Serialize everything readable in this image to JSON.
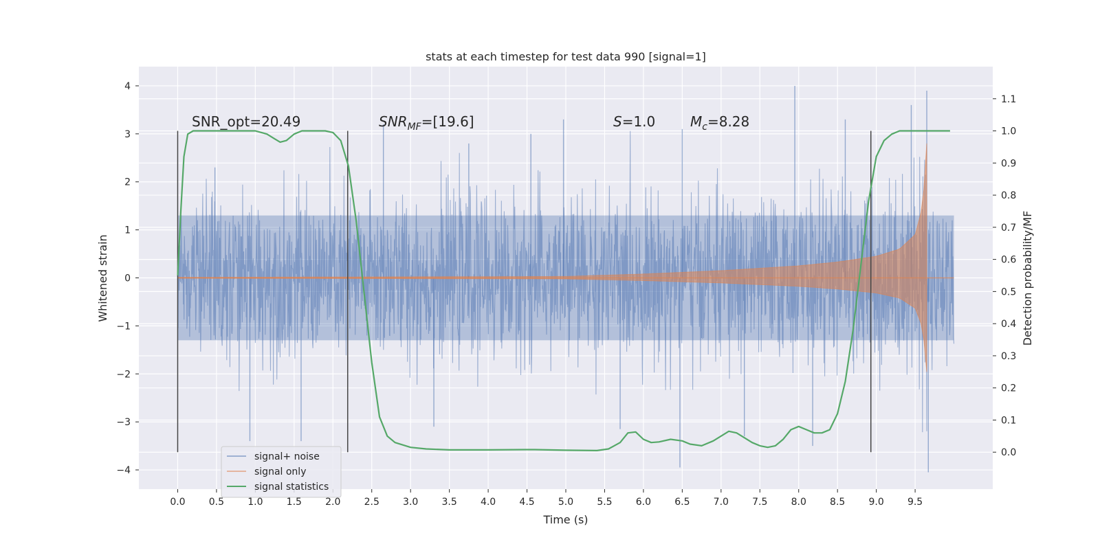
{
  "chart_data": {
    "type": "line",
    "title": "stats at each timestep for test data 990 [signal=1]",
    "xlabel": "Time (s)",
    "ylabel": "Whitened strain",
    "y2label": "Detection probability/MF",
    "xlim": [
      -0.5,
      10.5
    ],
    "ylim": [
      -4.4,
      4.4
    ],
    "y2lim": [
      -0.115,
      1.2
    ],
    "x_ticks": [
      "0.0",
      "0.5",
      "1.0",
      "1.5",
      "2.0",
      "2.5",
      "3.0",
      "3.5",
      "4.0",
      "4.5",
      "5.0",
      "5.5",
      "6.0",
      "6.5",
      "7.0",
      "7.5",
      "8.0",
      "8.5",
      "9.0",
      "9.5"
    ],
    "x_tick_values": [
      0,
      0.5,
      1,
      1.5,
      2,
      2.5,
      3,
      3.5,
      4,
      4.5,
      5,
      5.5,
      6,
      6.5,
      7,
      7.5,
      8,
      8.5,
      9,
      9.5
    ],
    "y_ticks": [
      "−4",
      "−3",
      "−2",
      "−1",
      "0",
      "1",
      "2",
      "3",
      "4"
    ],
    "y_tick_values": [
      -4,
      -3,
      -2,
      -1,
      0,
      1,
      2,
      3,
      4
    ],
    "y2_ticks": [
      "0.0",
      "0.1",
      "0.2",
      "0.3",
      "0.4",
      "0.5",
      "0.6",
      "0.7",
      "0.8",
      "0.9",
      "1.0",
      "1.1"
    ],
    "y2_tick_values": [
      0,
      0.1,
      0.2,
      0.3,
      0.4,
      0.5,
      0.6,
      0.7,
      0.8,
      0.9,
      1.0,
      1.1
    ],
    "grid": true,
    "legend_position": "lower-left",
    "annotations": {
      "snr_opt": "SNR_opt=20.49",
      "snr_mf_main": "SNR",
      "snr_mf_sub": "MF",
      "snr_mf_value": "=[19.6]",
      "s_symbol": "S",
      "s_value": "=1.0",
      "mc_symbol": "M",
      "mc_sub": "c",
      "mc_value": "=8.28"
    },
    "vertical_markers_x": [
      0.0,
      2.19,
      8.93
    ],
    "series": [
      {
        "name": "signal+ noise",
        "color": "#4c72b0",
        "typical_envelope": [
          1.3,
          1.3
        ],
        "peak_points": [
          [
            0.48,
            2.3
          ],
          [
            0.93,
            -3.4
          ],
          [
            1.59,
            -3.4
          ],
          [
            2.65,
            3.2
          ],
          [
            3.3,
            -3.1
          ],
          [
            3.75,
            2.8
          ],
          [
            4.55,
            3.0
          ],
          [
            4.97,
            3.3
          ],
          [
            5.7,
            -3.15
          ],
          [
            6.5,
            3.1
          ],
          [
            6.47,
            -3.95
          ],
          [
            7.3,
            -3.3
          ],
          [
            7.95,
            4.0
          ],
          [
            8.18,
            -3.5
          ],
          [
            8.6,
            3.3
          ],
          [
            9.45,
            3.6
          ],
          [
            9.65,
            3.9
          ],
          [
            9.67,
            -4.05
          ]
        ]
      },
      {
        "name": "signal only",
        "color": "#dd8452",
        "envelope_x": [
          0,
          5.0,
          6.0,
          7.0,
          8.0,
          8.5,
          9.0,
          9.3,
          9.5,
          9.6,
          9.65
        ],
        "envelope_amp": [
          0.01,
          0.03,
          0.08,
          0.15,
          0.25,
          0.33,
          0.45,
          0.6,
          0.9,
          1.5,
          2.8
        ],
        "end_x": 9.65
      },
      {
        "name": "signal statistics",
        "color": "#55a868",
        "x": [
          0,
          0.04,
          0.08,
          0.13,
          0.2,
          0.3,
          0.5,
          0.8,
          1.0,
          1.15,
          1.25,
          1.32,
          1.4,
          1.5,
          1.6,
          1.75,
          1.9,
          2.0,
          2.1,
          2.2,
          2.3,
          2.4,
          2.5,
          2.6,
          2.7,
          2.8,
          3.0,
          3.2,
          3.5,
          4.0,
          4.5,
          4.6,
          5.0,
          5.4,
          5.55,
          5.7,
          5.8,
          5.9,
          6.0,
          6.1,
          6.2,
          6.35,
          6.5,
          6.6,
          6.75,
          6.9,
          7.0,
          7.1,
          7.2,
          7.3,
          7.4,
          7.5,
          7.6,
          7.7,
          7.8,
          7.9,
          8.0,
          8.1,
          8.2,
          8.3,
          8.4,
          8.5,
          8.6,
          8.7,
          8.8,
          8.9,
          9.0,
          9.1,
          9.2,
          9.3,
          9.5,
          9.95
        ],
        "y": [
          0.55,
          0.75,
          0.92,
          0.99,
          1.0,
          1.0,
          1.0,
          1.0,
          1.0,
          0.99,
          0.975,
          0.965,
          0.97,
          0.99,
          1.0,
          1.0,
          1.0,
          0.995,
          0.97,
          0.89,
          0.72,
          0.5,
          0.28,
          0.11,
          0.05,
          0.03,
          0.015,
          0.01,
          0.007,
          0.007,
          0.008,
          0.008,
          0.006,
          0.005,
          0.01,
          0.03,
          0.06,
          0.063,
          0.04,
          0.03,
          0.032,
          0.04,
          0.035,
          0.025,
          0.02,
          0.035,
          0.05,
          0.065,
          0.06,
          0.045,
          0.03,
          0.02,
          0.015,
          0.02,
          0.04,
          0.07,
          0.08,
          0.07,
          0.06,
          0.06,
          0.07,
          0.12,
          0.22,
          0.38,
          0.58,
          0.78,
          0.92,
          0.97,
          0.99,
          1.0,
          1.0,
          1.0
        ]
      }
    ]
  }
}
